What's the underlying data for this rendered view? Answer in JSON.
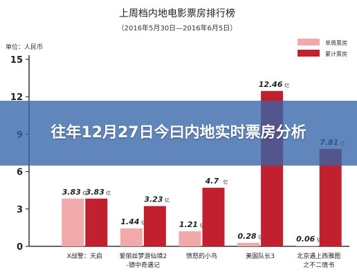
{
  "overlay": {
    "headline": "往年12月27日今曰内地实时票房分析"
  },
  "chart_data": {
    "type": "bar",
    "title": "上周档内地电影票房排行榜",
    "subtitle": "（2016年5月30日—2016年6月5日）",
    "unit_label": "单位：人民币",
    "value_suffix": "亿",
    "ylim": [
      0,
      15
    ],
    "yticks": [
      0,
      3,
      6,
      9,
      12,
      15
    ],
    "grid": false,
    "legend_position": "top-right",
    "categories": [
      [
        "X战警：天启"
      ],
      [
        "爱丽丝梦游仙境2",
        "-镜中奇遇记"
      ],
      [
        "愤怒的小鸟"
      ],
      [
        "美国队长3"
      ],
      [
        "北京遇上西雅图",
        "之不二情书"
      ]
    ],
    "series": [
      {
        "name": "单周票房",
        "color": "#f2a9aa",
        "values": [
          3.83,
          1.44,
          1.21,
          0.28,
          0.06
        ]
      },
      {
        "name": "累计票房",
        "color": "#c2202f",
        "values": [
          3.83,
          3.23,
          4.7,
          12.46,
          7.81
        ]
      }
    ],
    "data_labels": [
      [
        "3.83",
        "3.83"
      ],
      [
        "1.44",
        "3.23"
      ],
      [
        "1.21",
        "4.7"
      ],
      [
        "0.28",
        "12.46"
      ],
      [
        "0.06",
        "7.81"
      ]
    ]
  }
}
